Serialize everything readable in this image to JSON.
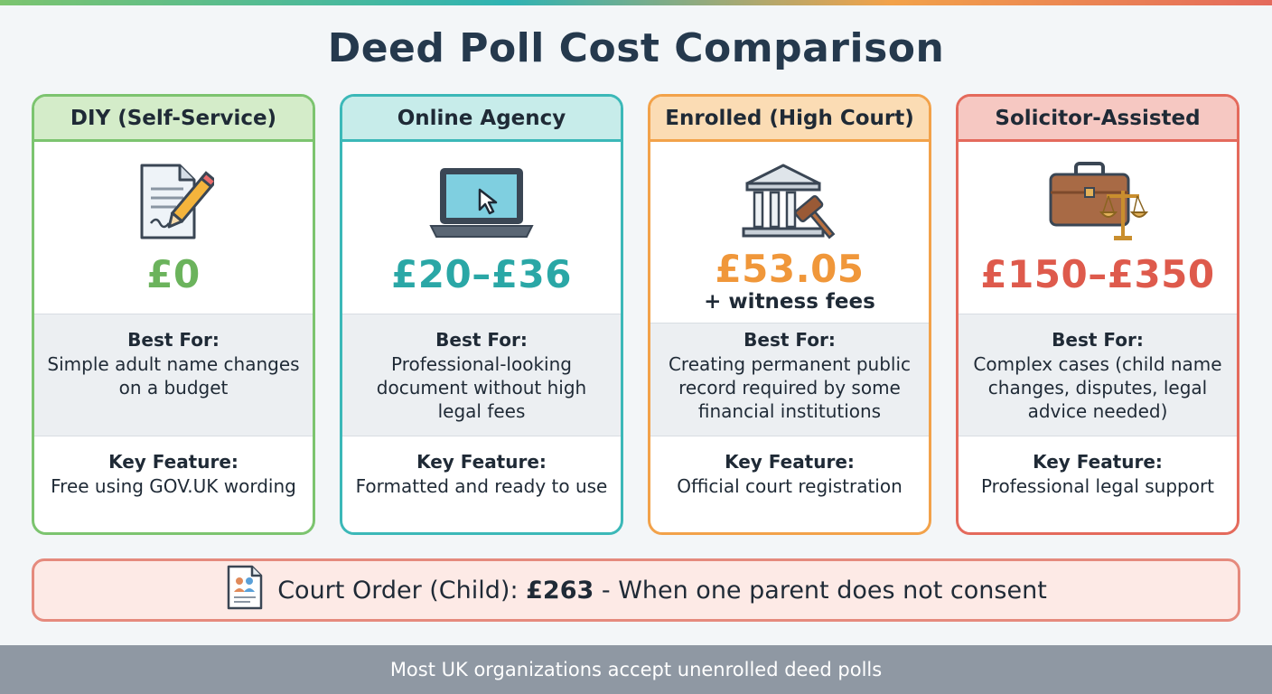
{
  "title": "Deed Poll Cost Comparison",
  "cards": [
    {
      "name": "DIY (Self-Service)",
      "icon": "document-pencil-icon",
      "price": "£0",
      "price_note": "",
      "best_for_label": "Best For:",
      "best_for": "Simple adult name changes on a budget",
      "key_feature_label": "Key Feature:",
      "key_feature": "Free using GOV.UK wording",
      "accent": "#7cc46f"
    },
    {
      "name": "Online Agency",
      "icon": "laptop-cursor-icon",
      "price": "£20–£36",
      "price_note": "",
      "best_for_label": "Best For:",
      "best_for": "Professional-looking document without high legal fees",
      "key_feature_label": "Key Feature:",
      "key_feature": "Formatted and ready to use",
      "accent": "#3bb8b8"
    },
    {
      "name": "Enrolled (High Court)",
      "icon": "courthouse-gavel-icon",
      "price": "£53.05",
      "price_note": "+ witness fees",
      "best_for_label": "Best For:",
      "best_for": "Creating permanent public record required by some financial institutions",
      "key_feature_label": "Key Feature:",
      "key_feature": "Official court registration",
      "accent": "#f2a24a"
    },
    {
      "name": "Solicitor-Assisted",
      "icon": "briefcase-scales-icon",
      "price": "£150–£350",
      "price_note": "",
      "best_for_label": "Best For:",
      "best_for": "Complex cases (child name changes, disputes, legal advice needed)",
      "key_feature_label": "Key Feature:",
      "key_feature": "Professional legal support",
      "accent": "#e46a5c"
    }
  ],
  "court_order": {
    "icon": "family-document-icon",
    "prefix": "Court Order (Child): ",
    "amount": "£263",
    "suffix": " - When one parent does not consent"
  },
  "footer": "Most UK organizations accept unenrolled deed polls"
}
